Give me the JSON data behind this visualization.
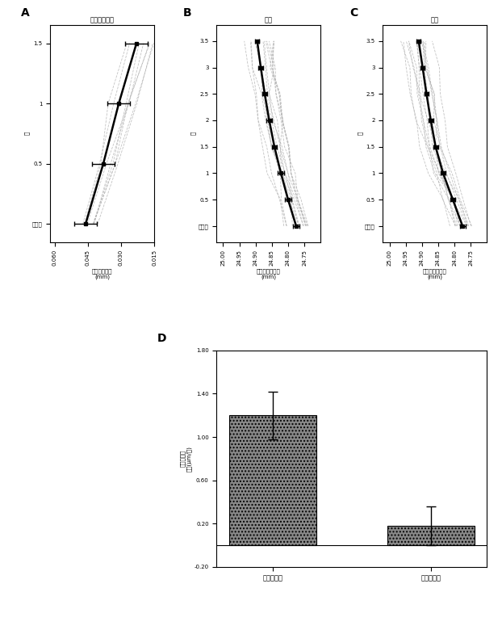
{
  "fig_background": "#ffffff",
  "panel_A": {
    "label": "A",
    "title": "左眼の近視化",
    "ylabel": "眼軸長増加量\n(mm)",
    "xlabel": "月",
    "xtick_labels": [
      "試験前",
      "0.5",
      "1",
      "1.5"
    ],
    "xtick_vals": [
      0,
      0.5,
      1.0,
      1.5
    ],
    "xlim": [
      0.015,
      0.062
    ],
    "xticks": [
      0.015,
      0.03,
      0.045,
      0.06
    ],
    "ylim": [
      -0.15,
      1.65
    ],
    "yticks": [
      0,
      0.5,
      1.0,
      1.5
    ],
    "mean_vals": [
      0.046,
      0.038,
      0.031,
      0.023
    ],
    "err_vals": [
      0.005,
      0.005,
      0.005,
      0.005
    ]
  },
  "panel_B": {
    "label": "B",
    "title": "試験",
    "ylabel": "正視眼の眼軸長\n(mm)",
    "xlabel": "月",
    "xtick_labels": [
      "試験前",
      "0.5",
      "1",
      "1.5",
      "2",
      "2.5",
      "3",
      "3.5"
    ],
    "xtick_vals": [
      0,
      0.5,
      1,
      1.5,
      2,
      2.5,
      3,
      3.5
    ],
    "xlim": [
      24.7,
      25.02
    ],
    "xticks": [
      24.75,
      24.8,
      24.85,
      24.9,
      24.95,
      25.0
    ],
    "ylim": [
      -0.3,
      3.8
    ],
    "mean_vals": [
      24.775,
      24.8,
      24.822,
      24.842,
      24.858,
      24.872,
      24.884,
      24.895
    ],
    "err_vals": [
      0.01,
      0.009,
      0.009,
      0.008,
      0.008,
      0.007,
      0.007,
      0.007
    ]
  },
  "panel_C": {
    "label": "C",
    "title": "対照",
    "ylabel": "正視眼の眼軸長\n(mm)",
    "xlabel": "月",
    "xtick_labels": [
      "試験前",
      "0.5",
      "1",
      "1.5",
      "2",
      "2.5",
      "3",
      "3.5"
    ],
    "xtick_vals": [
      0,
      0.5,
      1,
      1.5,
      2,
      2.5,
      3,
      3.5
    ],
    "xlim": [
      24.7,
      25.02
    ],
    "xticks": [
      24.75,
      24.8,
      24.85,
      24.9,
      24.95,
      25.0
    ],
    "ylim": [
      -0.3,
      3.8
    ],
    "mean_vals": [
      24.775,
      24.805,
      24.835,
      24.858,
      24.873,
      24.886,
      24.898,
      24.91
    ],
    "err_vals": [
      0.009,
      0.008,
      0.008,
      0.008,
      0.007,
      0.007,
      0.007,
      0.006
    ]
  },
  "panel_D": {
    "label": "D",
    "ylabel": "眼軸長増加\n速度(μm/日)",
    "categories": [
      "対照レンズ",
      "試験レンズ"
    ],
    "values": [
      1.2,
      0.18
    ],
    "errors": [
      0.22,
      0.18
    ],
    "bar_color": "#909090",
    "ylim": [
      -0.2,
      1.8
    ],
    "yticks": [
      -0.2,
      0.2,
      0.6,
      1.0,
      1.4,
      1.8
    ],
    "ytick_labels": [
      "-0.20",
      "0.20",
      "0.60",
      "1.00",
      "1.40",
      "1.80"
    ]
  }
}
